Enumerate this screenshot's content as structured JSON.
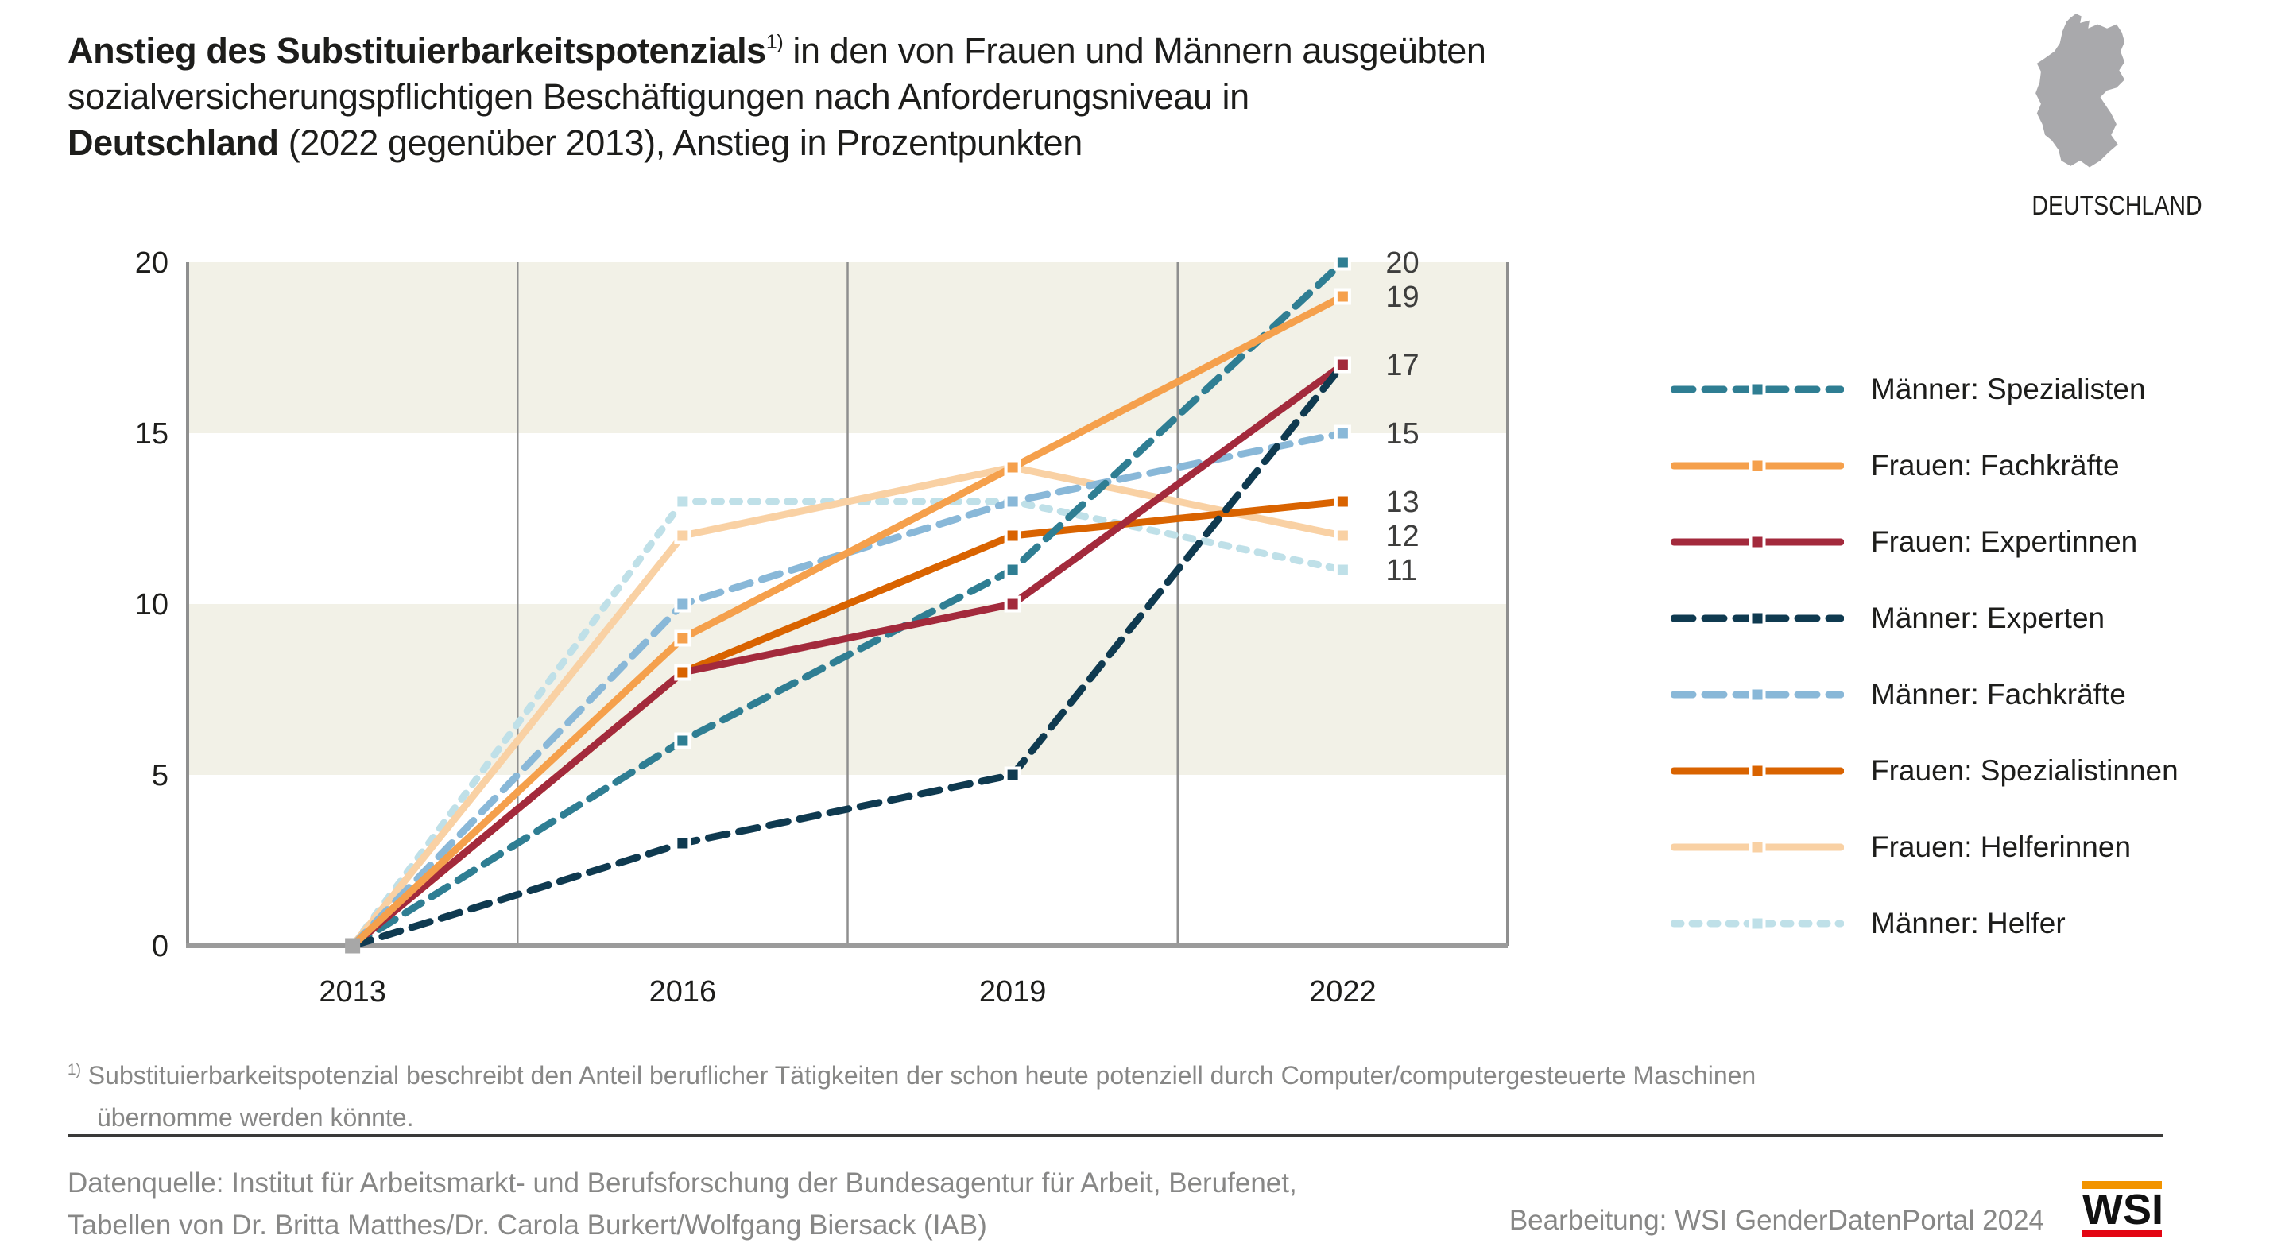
{
  "title": {
    "line1_bold": "Anstieg des Substituierbarkeitspotenzials",
    "line1_sup": "1)",
    "line1_rest": " in den von Frauen und Männern ausgeübten",
    "line2": "sozialversicherungspflichtigen Beschäftigungen nach Anforderungsniveau in",
    "line3_bold": "Deutschland",
    "line3_rest": " (2022 gegenüber 2013), Anstieg in Prozentpunkten"
  },
  "map": {
    "label": "DEUTSCHLAND",
    "fill": "#a9a9ac"
  },
  "chart_data": {
    "type": "line",
    "x_labels": [
      "2013",
      "2016",
      "2019",
      "2022"
    ],
    "ylim": [
      0,
      20
    ],
    "yticks": [
      0,
      5,
      10,
      15,
      20
    ],
    "bands": [
      [
        15,
        20
      ],
      [
        5,
        10
      ]
    ],
    "band_color": "#f2f1e7",
    "grid_color": "#8f8f8f",
    "axis_color": "#9b9b9b",
    "tick_color": "#1d1d1b",
    "end_label_color": "#3e3e3d",
    "start_marker_color": "#a7a7a7",
    "series": [
      {
        "name": "Männer: Spezialisten",
        "color": "#2f7e93",
        "dashed": true,
        "dash": "24 15",
        "values": [
          0,
          6,
          11,
          20
        ],
        "end_label": "20"
      },
      {
        "name": "Frauen: Fachkräfte",
        "color": "#f5a04c",
        "dashed": false,
        "dash": "",
        "values": [
          0,
          9,
          14,
          19
        ],
        "end_label": "19"
      },
      {
        "name": "Frauen: Expertinnen",
        "color": "#a32a3c",
        "dashed": false,
        "dash": "",
        "values": [
          0,
          8,
          10,
          17
        ],
        "end_label": "17"
      },
      {
        "name": "Männer: Experten",
        "color": "#0f3a50",
        "dashed": true,
        "dash": "24 15",
        "values": [
          0,
          3,
          5,
          17
        ],
        "end_label": ""
      },
      {
        "name": "Männer: Fachkräfte",
        "color": "#89b8d8",
        "dashed": true,
        "dash": "24 15",
        "values": [
          0,
          10,
          13,
          15
        ],
        "end_label": "15"
      },
      {
        "name": "Frauen: Spezialistinnen",
        "color": "#d96300",
        "dashed": false,
        "dash": "",
        "values": [
          0,
          8,
          12,
          13
        ],
        "end_label": "13"
      },
      {
        "name": "Frauen: Helferinnen",
        "color": "#f9d1a4",
        "dashed": false,
        "dash": "",
        "values": [
          0,
          12,
          14,
          12
        ],
        "end_label": "12"
      },
      {
        "name": "Männer: Helfer",
        "color": "#bfe0e8",
        "dashed": true,
        "dash": "9 14",
        "values": [
          0,
          13,
          13,
          11
        ],
        "end_label": "11"
      }
    ],
    "line_order": [
      7,
      6,
      4,
      5,
      0,
      2,
      3,
      1
    ],
    "marker_order": [
      7,
      6,
      4,
      3,
      0,
      2,
      5,
      1
    ]
  },
  "footnote": {
    "sup": "1)",
    "line1": "Substituierbarkeitspotenzial beschreibt den Anteil beruflicher Tätigkeiten der schon heute potenziell durch Computer/computergesteuerte Maschinen",
    "line2": "übernomme werden könnte."
  },
  "source": {
    "line1": "Datenquelle: Institut für Arbeitsmarkt- und Berufsforschung der Bundesagentur für Arbeit, Berufenet,",
    "line2": "Tabellen von Dr. Britta Matthes/Dr. Carola Burkert/Wolfgang Biersack (IAB)"
  },
  "credit": "Bearbeitung: WSI GenderDatenPortal 2024",
  "logo": {
    "text": "WSI",
    "bar_top": "#f29400",
    "bar_bottom": "#e30613"
  }
}
